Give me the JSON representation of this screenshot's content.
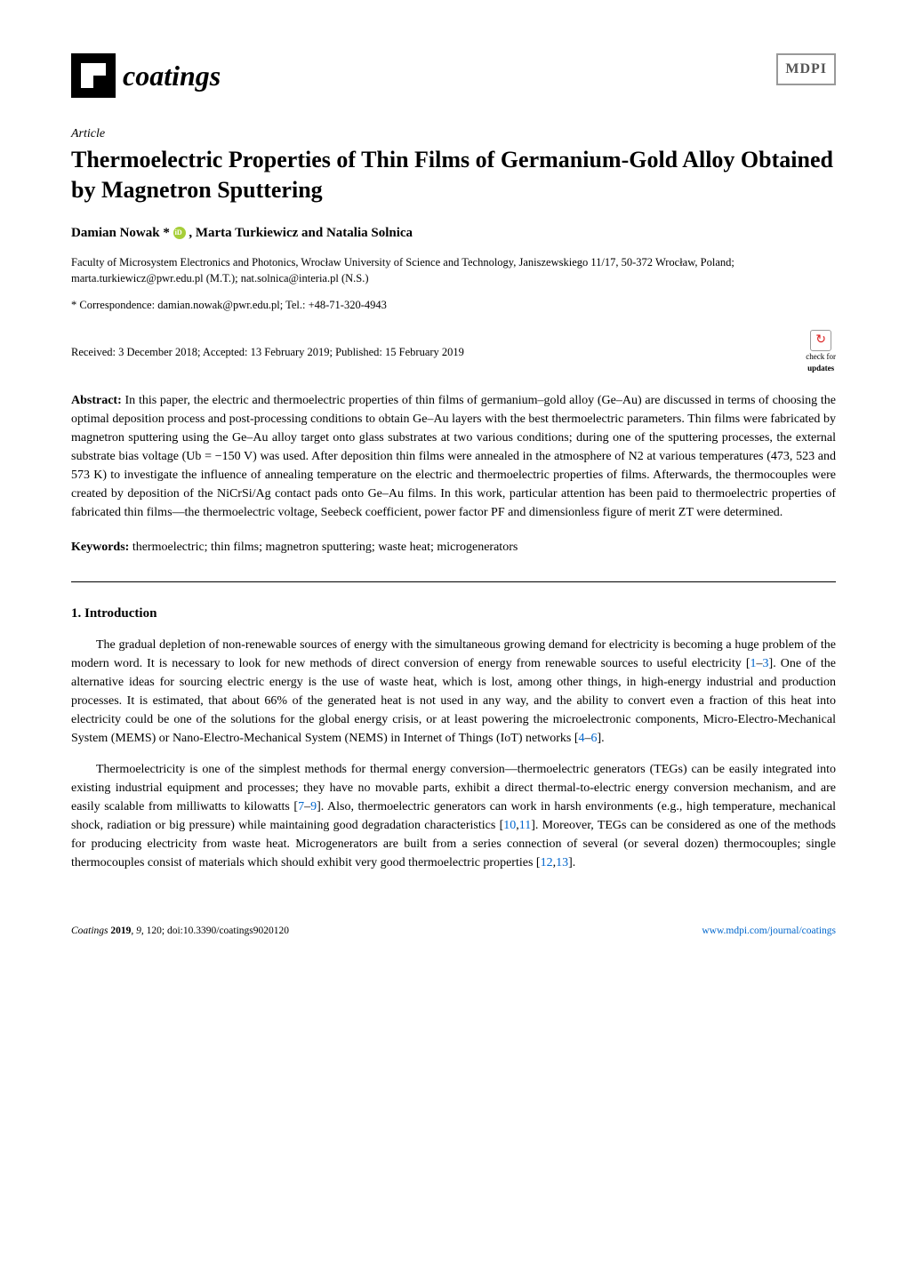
{
  "header": {
    "journal_name": "coatings",
    "publisher_logo": "MDPI"
  },
  "article": {
    "type": "Article",
    "title": "Thermoelectric Properties of Thin Films of Germanium-Gold Alloy Obtained by Magnetron Sputtering",
    "authors_text": "Damian Nowak * , Marta Turkiewicz and Natalia Solnica",
    "affiliation": "Faculty of Microsystem Electronics and Photonics, Wrocław University of Science and Technology, Janiszewskiego 11/17, 50-372 Wrocław, Poland; marta.turkiewicz@pwr.edu.pl (M.T.); nat.solnica@interia.pl (N.S.)",
    "correspondence": "* Correspondence: damian.nowak@pwr.edu.pl; Tel.: +48-71-320-4943",
    "dates": "Received: 3 December 2018; Accepted: 13 February 2019; Published: 15 February 2019",
    "updates_label": "check for",
    "updates_label2": "updates"
  },
  "abstract": {
    "label": "Abstract:",
    "text": " In this paper, the electric and thermoelectric properties of thin films of germanium–gold alloy (Ge–Au) are discussed in terms of choosing the optimal deposition process and post-processing conditions to obtain Ge–Au layers with the best thermoelectric parameters. Thin films were fabricated by magnetron sputtering using the Ge–Au alloy target onto glass substrates at two various conditions; during one of the sputtering processes, the external substrate bias voltage (Ub = −150 V) was used. After deposition thin films were annealed in the atmosphere of N2 at various temperatures (473, 523 and 573 K) to investigate the influence of annealing temperature on the electric and thermoelectric properties of films. Afterwards, the thermocouples were created by deposition of the NiCrSi/Ag contact pads onto Ge–Au films. In this work, particular attention has been paid to thermoelectric properties of fabricated thin films—the thermoelectric voltage, Seebeck coefficient, power factor PF and dimensionless figure of merit ZT were determined."
  },
  "keywords": {
    "label": "Keywords:",
    "text": " thermoelectric; thin films; magnetron sputtering; waste heat; microgenerators"
  },
  "section1": {
    "heading": "1. Introduction",
    "p1_a": "The gradual depletion of non-renewable sources of energy with the simultaneous growing demand for electricity is becoming a huge problem of the modern word. It is necessary to look for new methods of direct conversion of energy from renewable sources to useful electricity [",
    "p1_ref1": "1",
    "p1_dash1": "–",
    "p1_ref2": "3",
    "p1_b": "]. One of the alternative ideas for sourcing electric energy is the use of waste heat, which is lost, among other things, in high-energy industrial and production processes. It is estimated, that about 66% of the generated heat is not used in any way, and the ability to convert even a fraction of this heat into electricity could be one of the solutions for the global energy crisis, or at least powering the microelectronic components, Micro-Electro-Mechanical System (MEMS) or Nano-Electro-Mechanical System (NEMS) in Internet of Things (IoT) networks [",
    "p1_ref3": "4",
    "p1_dash2": "–",
    "p1_ref4": "6",
    "p1_c": "].",
    "p2_a": "Thermoelectricity is one of the simplest methods for thermal energy conversion—thermoelectric generators (TEGs) can be easily integrated into existing industrial equipment and processes; they have no movable parts, exhibit a direct thermal-to-electric energy conversion mechanism, and are easily scalable from milliwatts to kilowatts [",
    "p2_ref1": "7",
    "p2_dash1": "–",
    "p2_ref2": "9",
    "p2_b": "]. Also, thermoelectric generators can work in harsh environments (e.g., high temperature, mechanical shock, radiation or big pressure) while maintaining good degradation characteristics [",
    "p2_ref3": "10",
    "p2_comma1": ",",
    "p2_ref4": "11",
    "p2_c": "]. Moreover, TEGs can be considered as one of the methods for producing electricity from waste heat. Microgenerators are built from a series connection of several (or several dozen) thermocouples; single thermocouples consist of materials which should exhibit very good thermoelectric properties [",
    "p2_ref5": "12",
    "p2_comma2": ",",
    "p2_ref6": "13",
    "p2_d": "]."
  },
  "footer": {
    "left": "Coatings 2019, 9, 120; doi:10.3390/coatings9020120",
    "right": "www.mdpi.com/journal/coatings"
  },
  "colors": {
    "link": "#0066cc",
    "orcid": "#a6ce39",
    "text": "#000000",
    "bg": "#ffffff"
  },
  "typography": {
    "body_size_pt": 10.5,
    "title_size_pt": 20,
    "journal_name_size_pt": 24,
    "font_family": "Palatino"
  }
}
